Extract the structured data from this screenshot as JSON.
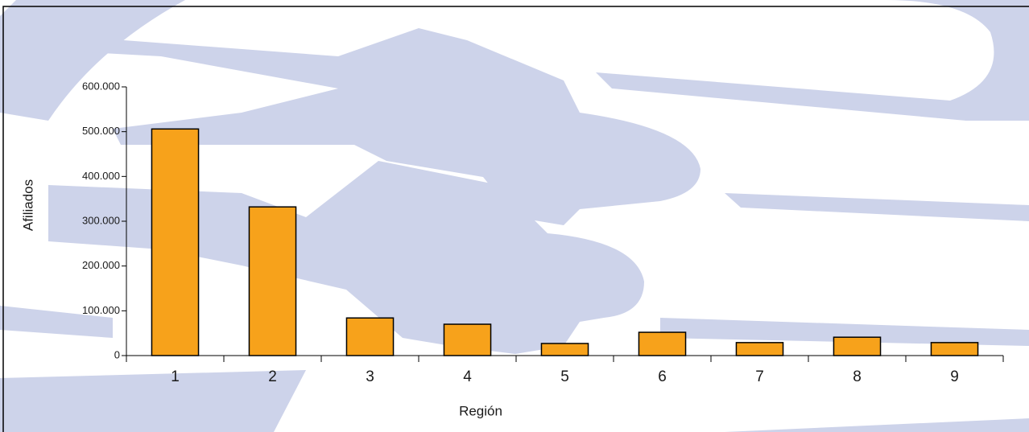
{
  "chart_data": {
    "type": "bar",
    "x_label": "Región",
    "y_label": "Afiliados",
    "categories": [
      "1",
      "2",
      "3",
      "4",
      "5",
      "6",
      "7",
      "8",
      "9"
    ],
    "values": [
      506000,
      332000,
      84000,
      70000,
      27000,
      52000,
      29000,
      41000,
      29000
    ],
    "color": "#f7a21b",
    "ylim": [
      0,
      600000
    ],
    "yticks": [
      0,
      {
        "value": 100000,
        "label": "100.000"
      },
      {
        "value": 200000,
        "label": "200.000"
      },
      {
        "value": 300000,
        "label": "300.000"
      },
      {
        "value": 400000,
        "label": "400.000"
      },
      {
        "value": 500000,
        "label": "500.000"
      },
      {
        "value": 600000,
        "label": "600.000"
      }
    ],
    "grid": false
  }
}
